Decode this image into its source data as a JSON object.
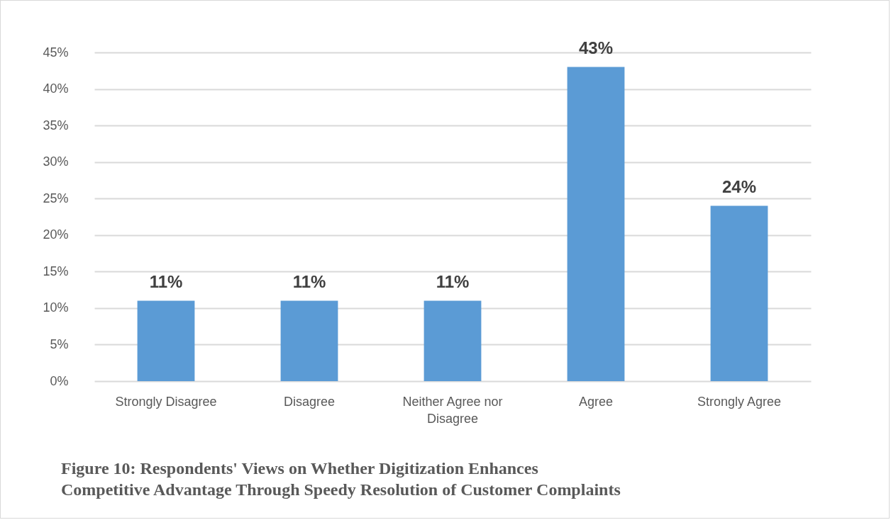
{
  "chart_data": {
    "type": "bar",
    "title": "Figure 10: Respondents' Views on Whether Digitization Enhances\nCompetitive Advantage Through Speedy Resolution of Customer Complaints",
    "categories": [
      "Strongly Disagree",
      "Disagree",
      "Neither Agree nor Disagree",
      "Agree",
      "Strongly Agree"
    ],
    "values": [
      11,
      11,
      11,
      43,
      24
    ],
    "value_labels": [
      "11%",
      "11%",
      "11%",
      "43%",
      "24%"
    ],
    "color": "#5b9bd5",
    "ylim": [
      0,
      45
    ],
    "yticks": [
      {
        "value": 0,
        "label": "0%"
      },
      {
        "value": 5,
        "label": "5%"
      },
      {
        "value": 10,
        "label": "10%"
      },
      {
        "value": 15,
        "label": "15%"
      },
      {
        "value": 20,
        "label": "20%"
      },
      {
        "value": 25,
        "label": "25%"
      },
      {
        "value": 30,
        "label": "30%"
      },
      {
        "value": 35,
        "label": "35%"
      },
      {
        "value": 40,
        "label": "40%"
      },
      {
        "value": 45,
        "label": "45%"
      }
    ],
    "grid": "y"
  }
}
